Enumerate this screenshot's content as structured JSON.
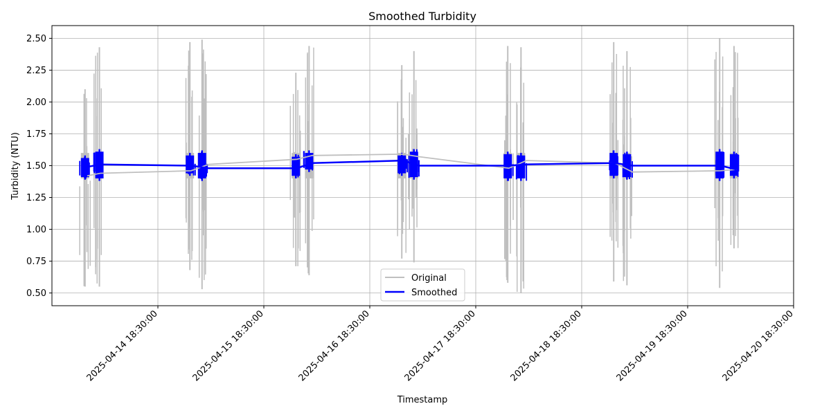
{
  "chart_data": {
    "type": "line",
    "title": "Smoothed Turbidity",
    "xlabel": "Timestamp",
    "ylabel": "Turbidity (NTU)",
    "xlim": [
      "2025-04-13 18:30:00",
      "2025-04-20 18:30:00"
    ],
    "ylim": [
      0.4,
      2.6
    ],
    "yticks": [
      0.5,
      0.75,
      1.0,
      1.25,
      1.5,
      1.75,
      2.0,
      2.25,
      2.5
    ],
    "ytick_labels": [
      "0.50",
      "0.75",
      "1.00",
      "1.25",
      "1.50",
      "1.75",
      "2.00",
      "2.25",
      "2.50"
    ],
    "xticks": [
      "2025-04-14 18:30:00",
      "2025-04-15 18:30:00",
      "2025-04-16 18:30:00",
      "2025-04-17 18:30:00",
      "2025-04-18 18:30:00",
      "2025-04-19 18:30:00",
      "2025-04-20 18:30:00"
    ],
    "xtick_labels": [
      "2025-04-14 18:30:00",
      "2025-04-15 18:30:00",
      "2025-04-16 18:30:00",
      "2025-04-17 18:30:00",
      "2025-04-18 18:30:00",
      "2025-04-19 18:30:00",
      "2025-04-20 18:30:00"
    ],
    "grid": true,
    "legend": {
      "position": "lower-center"
    },
    "series": [
      {
        "name": "Original",
        "color": "#bfbfbf",
        "x": [
          "2025-04-14 02:30:00",
          "2025-04-14 05:30:00",
          "2025-04-15 02:00:00",
          "2025-04-15 06:00:00",
          "2025-04-16 02:00:00",
          "2025-04-16 05:30:00",
          "2025-04-17 02:00:00",
          "2025-04-17 05:45:00",
          "2025-04-18 02:00:00",
          "2025-04-18 06:00:00",
          "2025-04-19 02:00:00",
          "2025-04-19 06:00:00",
          "2025-04-20 02:00:00",
          "2025-04-20 05:30:00"
        ],
        "y": [
          1.42,
          1.44,
          1.46,
          1.51,
          1.55,
          1.58,
          1.59,
          1.57,
          1.48,
          1.54,
          1.52,
          1.45,
          1.46,
          1.47
        ],
        "bursts": [
          {
            "x": "2025-04-14 02:00:00",
            "min": 0.55,
            "max": 2.1
          },
          {
            "x": "2025-04-14 05:15:00",
            "min": 0.55,
            "max": 2.43
          },
          {
            "x": "2025-04-15 01:45:00",
            "min": 0.68,
            "max": 2.47
          },
          {
            "x": "2025-04-15 04:30:00",
            "min": 0.53,
            "max": 2.49
          },
          {
            "x": "2025-04-16 01:45:00",
            "min": 0.71,
            "max": 2.23
          },
          {
            "x": "2025-04-16 04:45:00",
            "min": 0.64,
            "max": 2.44
          },
          {
            "x": "2025-04-17 01:45:00",
            "min": 0.77,
            "max": 2.29
          },
          {
            "x": "2025-04-17 04:30:00",
            "min": 0.74,
            "max": 2.4
          },
          {
            "x": "2025-04-18 01:45:00",
            "min": 0.58,
            "max": 2.44
          },
          {
            "x": "2025-04-18 04:45:00",
            "min": 0.5,
            "max": 2.43
          },
          {
            "x": "2025-04-19 01:45:00",
            "min": 0.59,
            "max": 2.47
          },
          {
            "x": "2025-04-19 04:45:00",
            "min": 0.56,
            "max": 2.4
          },
          {
            "x": "2025-04-20 01:45:00",
            "min": 0.54,
            "max": 2.5
          },
          {
            "x": "2025-04-20 05:00:00",
            "min": 0.85,
            "max": 2.44
          }
        ]
      },
      {
        "name": "Smoothed",
        "color": "#0000ff",
        "x": [
          "2025-04-14 02:30:00",
          "2025-04-14 05:30:00",
          "2025-04-15 02:00:00",
          "2025-04-15 06:00:00",
          "2025-04-16 02:00:00",
          "2025-04-16 05:30:00",
          "2025-04-17 02:00:00",
          "2025-04-17 05:45:00",
          "2025-04-18 02:00:00",
          "2025-04-18 06:00:00",
          "2025-04-19 02:00:00",
          "2025-04-19 06:00:00",
          "2025-04-20 02:00:00",
          "2025-04-20 05:30:00"
        ],
        "y": [
          1.49,
          1.51,
          1.5,
          1.48,
          1.48,
          1.52,
          1.54,
          1.5,
          1.5,
          1.51,
          1.52,
          1.5,
          1.5,
          1.47
        ],
        "bursts": [
          {
            "x": "2025-04-14 02:00:00",
            "min": 1.39,
            "max": 1.58
          },
          {
            "x": "2025-04-14 05:15:00",
            "min": 1.38,
            "max": 1.63
          },
          {
            "x": "2025-04-15 01:45:00",
            "min": 1.42,
            "max": 1.6
          },
          {
            "x": "2025-04-15 04:30:00",
            "min": 1.38,
            "max": 1.62
          },
          {
            "x": "2025-04-16 01:45:00",
            "min": 1.4,
            "max": 1.59
          },
          {
            "x": "2025-04-16 04:45:00",
            "min": 1.45,
            "max": 1.62
          },
          {
            "x": "2025-04-17 01:45:00",
            "min": 1.42,
            "max": 1.6
          },
          {
            "x": "2025-04-17 04:30:00",
            "min": 1.39,
            "max": 1.63
          },
          {
            "x": "2025-04-18 01:45:00",
            "min": 1.38,
            "max": 1.61
          },
          {
            "x": "2025-04-18 04:45:00",
            "min": 1.38,
            "max": 1.6
          },
          {
            "x": "2025-04-19 01:45:00",
            "min": 1.4,
            "max": 1.62
          },
          {
            "x": "2025-04-19 04:45:00",
            "min": 1.39,
            "max": 1.61
          },
          {
            "x": "2025-04-20 01:45:00",
            "min": 1.38,
            "max": 1.63
          },
          {
            "x": "2025-04-20 05:00:00",
            "min": 1.4,
            "max": 1.61
          }
        ]
      }
    ]
  }
}
